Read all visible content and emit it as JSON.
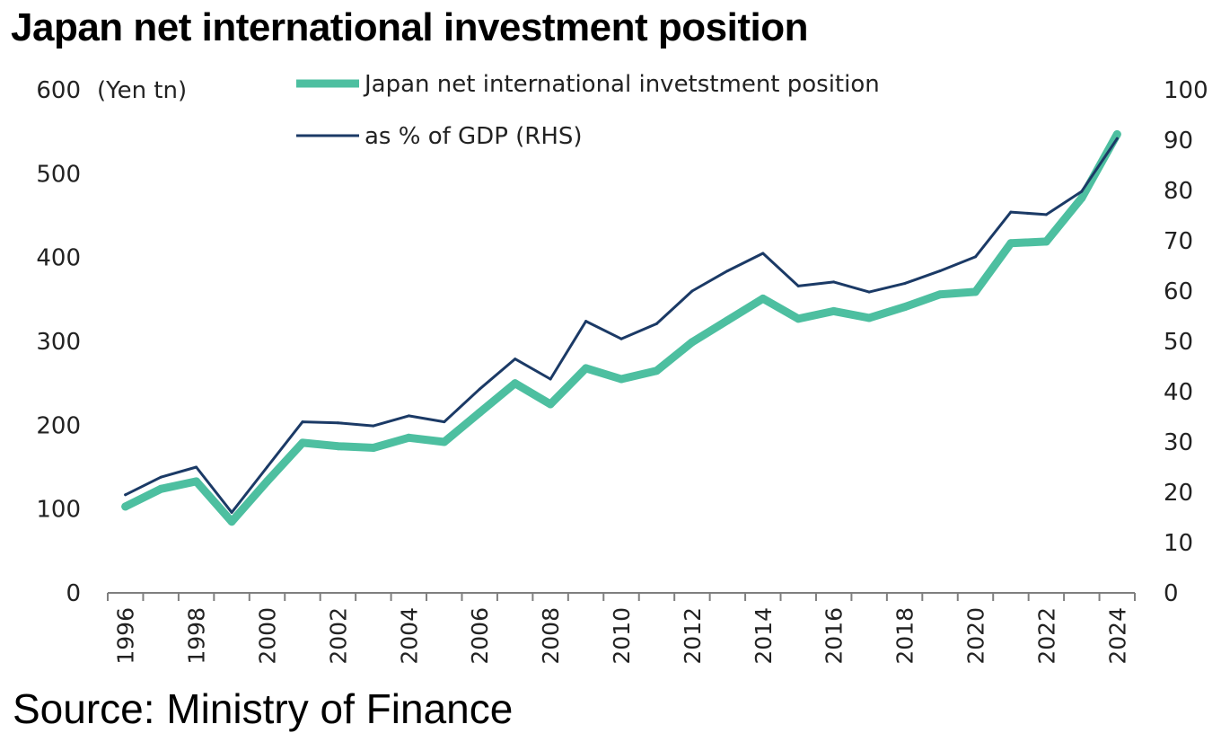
{
  "title": "Japan net international investment position",
  "source": "Source: Ministry of Finance",
  "chart_data": {
    "type": "line",
    "x": [
      1996,
      1997,
      1998,
      1999,
      2000,
      2001,
      2002,
      2003,
      2004,
      2005,
      2006,
      2007,
      2008,
      2009,
      2010,
      2011,
      2012,
      2013,
      2014,
      2015,
      2016,
      2017,
      2018,
      2019,
      2020,
      2021,
      2022,
      2023,
      2024
    ],
    "x_tick_labels": [
      "1996",
      "1998",
      "2000",
      "2002",
      "2004",
      "2006",
      "2008",
      "2010",
      "2012",
      "2014",
      "2016",
      "2018",
      "2020",
      "2022",
      "2024"
    ],
    "series": [
      {
        "name": "Japan net international invetstment position",
        "axis": "left",
        "color": "#4dbfa0",
        "values": [
          103,
          124,
          133,
          85,
          133,
          179,
          175,
          173,
          185,
          180,
          215,
          250,
          225,
          268,
          255,
          265,
          299,
          325,
          351,
          327,
          336,
          328,
          341,
          356,
          359,
          417,
          419,
          471,
          547
        ]
      },
      {
        "name": "as % of GDP (RHS)",
        "axis": "right",
        "color": "#1b3a66",
        "values": [
          19.5,
          23,
          25,
          16,
          25,
          34,
          33.8,
          33.2,
          35.2,
          34,
          40.5,
          46.5,
          42.5,
          54,
          50.5,
          53.5,
          60,
          64,
          67.5,
          61,
          61.8,
          59.8,
          61.5,
          64,
          66.8,
          75.7,
          75.2,
          79.8,
          90.3
        ]
      }
    ],
    "y_left": {
      "label": "(Yen tn)",
      "ylim": [
        0,
        600
      ],
      "ticks": [
        0,
        100,
        200,
        300,
        400,
        500,
        600
      ]
    },
    "y_right": {
      "label": "",
      "ylim": [
        0,
        100
      ],
      "ticks": [
        0,
        10,
        20,
        30,
        40,
        50,
        60,
        70,
        80,
        90,
        100
      ]
    },
    "grid": false,
    "legend_position": "top"
  }
}
